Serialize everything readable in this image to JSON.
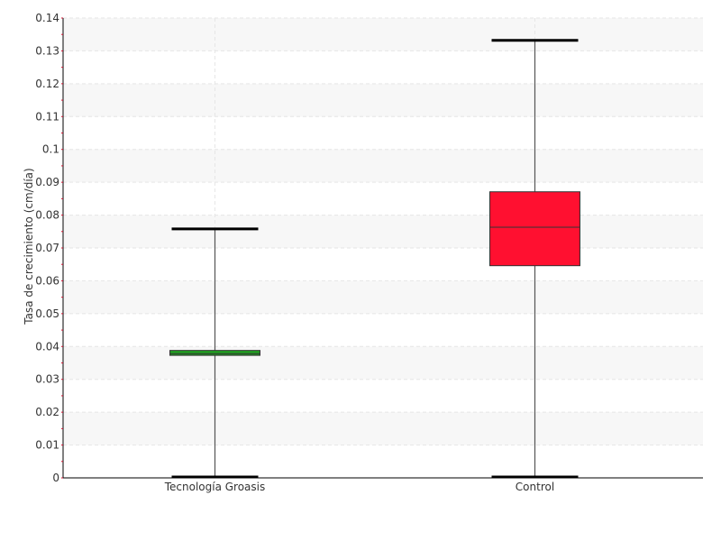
{
  "chart_data": {
    "type": "boxplot",
    "title": "",
    "xlabel": "",
    "ylabel": "Tasa de crecimiento (cm/día)",
    "ylim": [
      0,
      0.14
    ],
    "yticks": [
      "0",
      "0.01",
      "0.02",
      "0.03",
      "0.04",
      "0.05",
      "0.06",
      "0.07",
      "0.08",
      "0.09",
      "0.1",
      "0.11",
      "0.12",
      "0.13",
      "0.14"
    ],
    "yticks_values": [
      0,
      0.01,
      0.02,
      0.03,
      0.04,
      0.05,
      0.06,
      0.07,
      0.08,
      0.09,
      0.1,
      0.11,
      0.12,
      0.13,
      0.14
    ],
    "grid": true,
    "categories": [
      "Tecnología Groasis",
      "Control"
    ],
    "series": [
      {
        "category": "Tecnología Groasis",
        "min": 0,
        "q1": 0.0373,
        "median": 0.0378,
        "q3": 0.0388,
        "max": 0.0758,
        "color": "#22a022"
      },
      {
        "category": "Control",
        "min": 0,
        "q1": 0.0646,
        "median": 0.0763,
        "q3": 0.0871,
        "max": 0.1332,
        "color": "#ff1030"
      }
    ]
  }
}
